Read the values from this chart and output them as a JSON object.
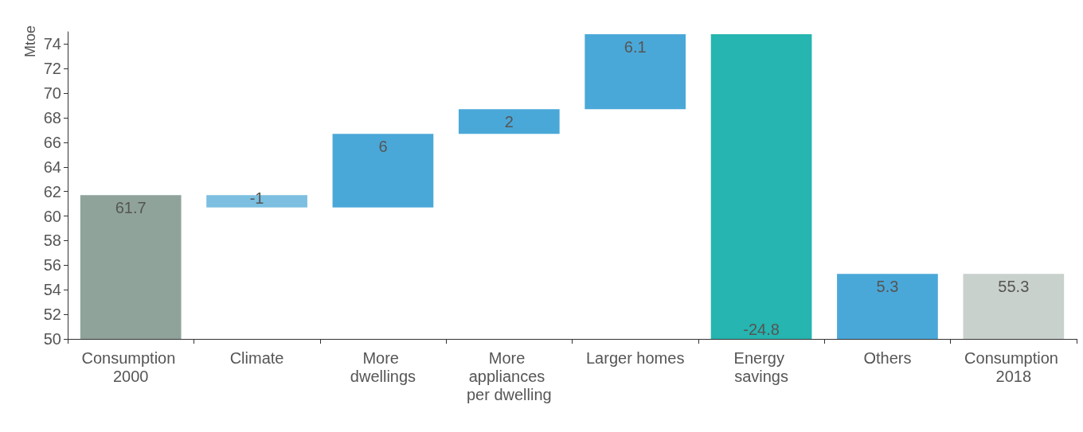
{
  "chart_data": {
    "type": "bar",
    "ylabel": "Mtoe",
    "categories": [
      "Consumption 2000",
      "Climate",
      "More dwellings",
      "More appliances per dwelling",
      "Larger homes",
      "Energy savings",
      "Others",
      "Consumption 2018"
    ],
    "values": [
      61.7,
      -1,
      6,
      2,
      6.1,
      -24.8,
      5.3,
      55.3
    ],
    "base": [
      null,
      61.7,
      60.7,
      66.7,
      68.7,
      74.8,
      50,
      null
    ],
    "colors": [
      "#8fa39b",
      "#7cbfe0",
      "#4aa8d8",
      "#4aa8d8",
      "#4aa8d8",
      "#26b5b0",
      "#4aa8d8",
      "#c9d1cd"
    ],
    "ylim": [
      50,
      75
    ],
    "yticks": [
      50,
      52,
      54,
      56,
      58,
      60,
      62,
      64,
      66,
      68,
      70,
      72,
      74
    ],
    "data_labels": true,
    "grid": false
  }
}
